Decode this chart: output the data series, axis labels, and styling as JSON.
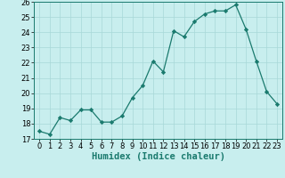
{
  "xlabel": "Humidex (Indice chaleur)",
  "x": [
    0,
    1,
    2,
    3,
    4,
    5,
    6,
    7,
    8,
    9,
    10,
    11,
    12,
    13,
    14,
    15,
    16,
    17,
    18,
    19,
    20,
    21,
    22,
    23
  ],
  "y": [
    17.5,
    17.3,
    18.4,
    18.2,
    18.9,
    18.9,
    18.1,
    18.1,
    18.5,
    19.7,
    20.5,
    22.1,
    21.4,
    24.1,
    23.7,
    24.7,
    25.2,
    25.4,
    25.4,
    25.8,
    24.2,
    22.1,
    20.1,
    19.3
  ],
  "line_color": "#1a7a6e",
  "marker": "D",
  "marker_size": 2.2,
  "bg_color": "#c8eeee",
  "grid_color": "#a8d8d8",
  "ylim": [
    17,
    26
  ],
  "xlim": [
    -0.5,
    23.5
  ],
  "yticks": [
    17,
    18,
    19,
    20,
    21,
    22,
    23,
    24,
    25,
    26
  ],
  "xticks": [
    0,
    1,
    2,
    3,
    4,
    5,
    6,
    7,
    8,
    9,
    10,
    11,
    12,
    13,
    14,
    15,
    16,
    17,
    18,
    19,
    20,
    21,
    22,
    23
  ],
  "tick_fontsize": 6.0,
  "xlabel_fontsize": 7.5,
  "linewidth": 0.9
}
